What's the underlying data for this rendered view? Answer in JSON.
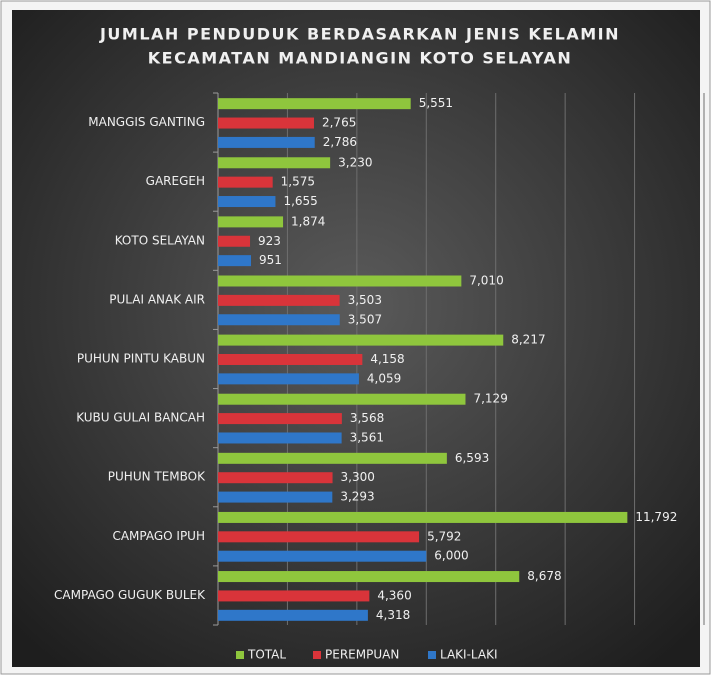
{
  "chart_data": {
    "type": "barh",
    "title": [
      "JUMLAH PENDUDUK BERDASARKAN  JENIS KELAMIN",
      "KECAMATAN MANDIANGIN KOTO SELAYAN"
    ],
    "categories": [
      "MANGGIS GANTING",
      "GAREGEH",
      "KOTO SELAYAN",
      "PULAI ANAK AIR",
      "PUHUN PINTU KABUN",
      "KUBU GULAI BANCAH",
      "PUHUN TEMBOK",
      "CAMPAGO IPUH",
      "CAMPAGO GUGUK BULEK"
    ],
    "series": [
      {
        "name": "TOTAL",
        "color": "#8fc63d",
        "values": [
          5551,
          3230,
          1874,
          7010,
          8217,
          7129,
          6593,
          11792,
          8678
        ],
        "value_labels": [
          "5,551",
          "3,230",
          "1,874",
          "7,010",
          "8,217",
          "7,129",
          "6,593",
          "11,792",
          "8,678"
        ]
      },
      {
        "name": "PEREMPUAN",
        "color": "#d9343a",
        "values": [
          2765,
          1575,
          923,
          3503,
          4158,
          3568,
          3300,
          5792,
          4360
        ],
        "value_labels": [
          "2,765",
          "1,575",
          "923",
          "3,503",
          "4,158",
          "3,568",
          "3,300",
          "5,792",
          "4,360"
        ]
      },
      {
        "name": "LAKI-LAKI",
        "color": "#2f77c9",
        "values": [
          2786,
          1655,
          951,
          3507,
          4059,
          3561,
          3293,
          6000,
          4318
        ],
        "value_labels": [
          "2,786",
          "1,655",
          "951",
          "3,507",
          "4,059",
          "3,561",
          "3,293",
          "6,000",
          "4,318"
        ]
      }
    ],
    "xlim": [
      0,
      14000
    ],
    "xticks": [
      0,
      2000,
      4000,
      6000,
      8000,
      10000,
      12000,
      14000
    ],
    "grid": true,
    "legend": "bottom"
  }
}
